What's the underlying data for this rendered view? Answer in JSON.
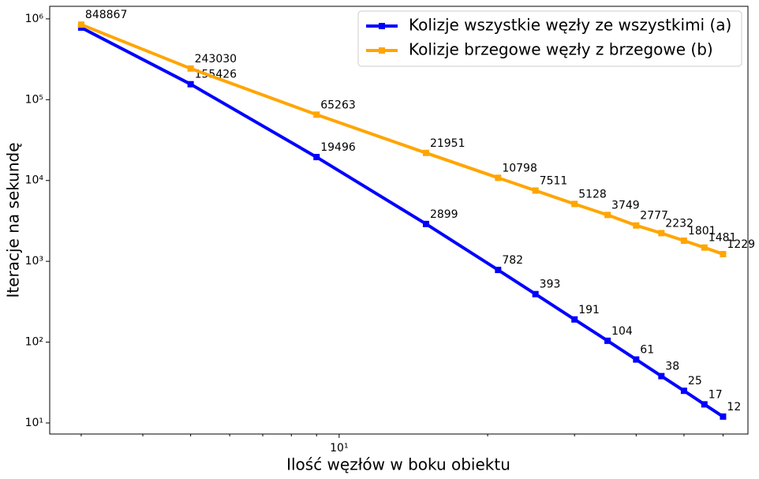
{
  "chart_data": {
    "type": "line",
    "x_label": "Ilość węzłów w boku obiektu",
    "y_label": "Iteracje na sekundę",
    "x": [
      3,
      5,
      9,
      15,
      21,
      25,
      30,
      35,
      40,
      45,
      50,
      55,
      60
    ],
    "series": [
      {
        "name": "Kolizje wszystkie węzły ze wszystkimi (a)",
        "color": "#0000ff",
        "values": [
          780000,
          155426,
          19496,
          2899,
          782,
          393,
          191,
          104,
          61,
          38,
          25,
          17,
          12
        ],
        "value_labels": [
          null,
          "155426",
          "19496",
          "2899",
          "782",
          "393",
          "191",
          "104",
          "61",
          "38",
          "25",
          "17",
          "12"
        ]
      },
      {
        "name": "Kolizje brzegowe węzły z brzegowe (b)",
        "color": "#ffa500",
        "values": [
          848867,
          243030,
          65263,
          21951,
          10798,
          7511,
          5128,
          3749,
          2777,
          2232,
          1801,
          1481,
          1229
        ]
      }
    ],
    "xscale": "log",
    "yscale": "log",
    "xlim": [
      2.59,
      67.4
    ],
    "ylim": [
      7.3,
      1430000
    ],
    "xticks": [
      {
        "value": 10,
        "label": "10¹"
      }
    ],
    "xminorticks": [
      3,
      4,
      5,
      6,
      7,
      8,
      9,
      20,
      30,
      40,
      50,
      60
    ],
    "yticks": [
      {
        "value": 10,
        "label": "10¹"
      },
      {
        "value": 100,
        "label": "10²"
      },
      {
        "value": 1000,
        "label": "10³"
      },
      {
        "value": 10000,
        "label": "10⁴"
      },
      {
        "value": 100000,
        "label": "10⁵"
      },
      {
        "value": 1000000,
        "label": "10⁶"
      }
    ],
    "legend": "upper right"
  }
}
